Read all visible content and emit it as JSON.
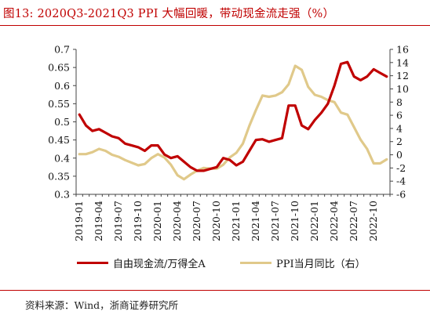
{
  "title": "图13:  2020Q3-2021Q3 PPI 大幅回暖，带动现金流走强（%）",
  "source": "资料来源：Wind，浙商证券研究所",
  "colors": {
    "title": "#c00000",
    "series1": "#c00000",
    "series2": "#e0c98a",
    "rule": "#c00000"
  },
  "chart_data": {
    "type": "line",
    "title": "",
    "x": [
      "2019-01",
      "2019-02",
      "2019-03",
      "2019-04",
      "2019-05",
      "2019-06",
      "2019-07",
      "2019-08",
      "2019-09",
      "2019-10",
      "2019-11",
      "2019-12",
      "2020-01",
      "2020-02",
      "2020-03",
      "2020-04",
      "2020-05",
      "2020-06",
      "2020-07",
      "2020-08",
      "2020-09",
      "2020-10",
      "2020-11",
      "2020-12",
      "2021-01",
      "2021-02",
      "2021-03",
      "2021-04",
      "2021-05",
      "2021-06",
      "2021-07",
      "2021-08",
      "2021-09",
      "2021-10",
      "2021-11",
      "2021-12",
      "2022-01",
      "2022-02",
      "2022-03",
      "2022-04",
      "2022-05",
      "2022-06",
      "2022-07",
      "2022-08",
      "2022-09",
      "2022-10",
      "2022-11",
      "2022-12"
    ],
    "x_tick_labels": [
      "2019-01",
      "2019-04",
      "2019-07",
      "2019-10",
      "2020-01",
      "2020-04",
      "2020-07",
      "2020-10",
      "2021-01",
      "2021-04",
      "2021-07",
      "2021-10",
      "2022-01",
      "2022-04",
      "2022-07",
      "2022-10"
    ],
    "y_left_ticks": [
      0.3,
      0.35,
      0.4,
      0.45,
      0.5,
      0.55,
      0.6,
      0.65,
      0.7
    ],
    "y_left_tick_labels": [
      "0.3",
      "0.35",
      "0.4",
      "0.45",
      "0.5",
      "0.55",
      "0.6",
      "0.65",
      "0.7"
    ],
    "y_left_range": [
      0.3,
      0.7
    ],
    "y_right_ticks": [
      -6,
      -4,
      -2,
      0,
      2,
      4,
      6,
      8,
      10,
      12,
      14,
      16
    ],
    "y_right_tick_labels": [
      "-6",
      "-4",
      "-2",
      "0",
      "2",
      "4",
      "6",
      "8",
      "10",
      "12",
      "14",
      "16"
    ],
    "y_right_range": [
      -6,
      16
    ],
    "grid": false,
    "legend_position": "bottom",
    "series": [
      {
        "name": "自由现金流/万得全A",
        "axis": "left",
        "values": [
          0.52,
          0.49,
          0.475,
          0.48,
          0.47,
          0.46,
          0.455,
          0.44,
          0.435,
          0.43,
          0.42,
          0.435,
          0.435,
          0.41,
          0.4,
          0.405,
          0.39,
          0.375,
          0.365,
          0.365,
          0.37,
          0.375,
          0.4,
          0.395,
          0.38,
          0.39,
          0.42,
          0.45,
          0.452,
          0.445,
          0.45,
          0.455,
          0.545,
          0.545,
          0.49,
          0.48,
          0.505,
          0.525,
          0.55,
          0.6,
          0.66,
          0.665,
          0.625,
          0.615,
          0.625,
          0.645,
          0.635,
          0.625
        ]
      },
      {
        "name": "PPI当月同比（右）",
        "axis": "right",
        "values": [
          0.1,
          0.1,
          0.4,
          0.9,
          0.6,
          0.0,
          -0.3,
          -0.8,
          -1.2,
          -1.6,
          -1.4,
          -0.5,
          0.1,
          -0.4,
          -1.5,
          -3.1,
          -3.7,
          -3.0,
          -2.4,
          -2.0,
          -2.1,
          -2.1,
          -1.5,
          -0.4,
          0.3,
          1.7,
          4.4,
          6.8,
          9.0,
          8.8,
          9.0,
          9.5,
          10.7,
          13.5,
          12.9,
          10.3,
          9.1,
          8.8,
          8.3,
          8.0,
          6.4,
          6.1,
          4.2,
          2.3,
          0.9,
          -1.3,
          -1.3,
          -0.7
        ]
      }
    ]
  }
}
